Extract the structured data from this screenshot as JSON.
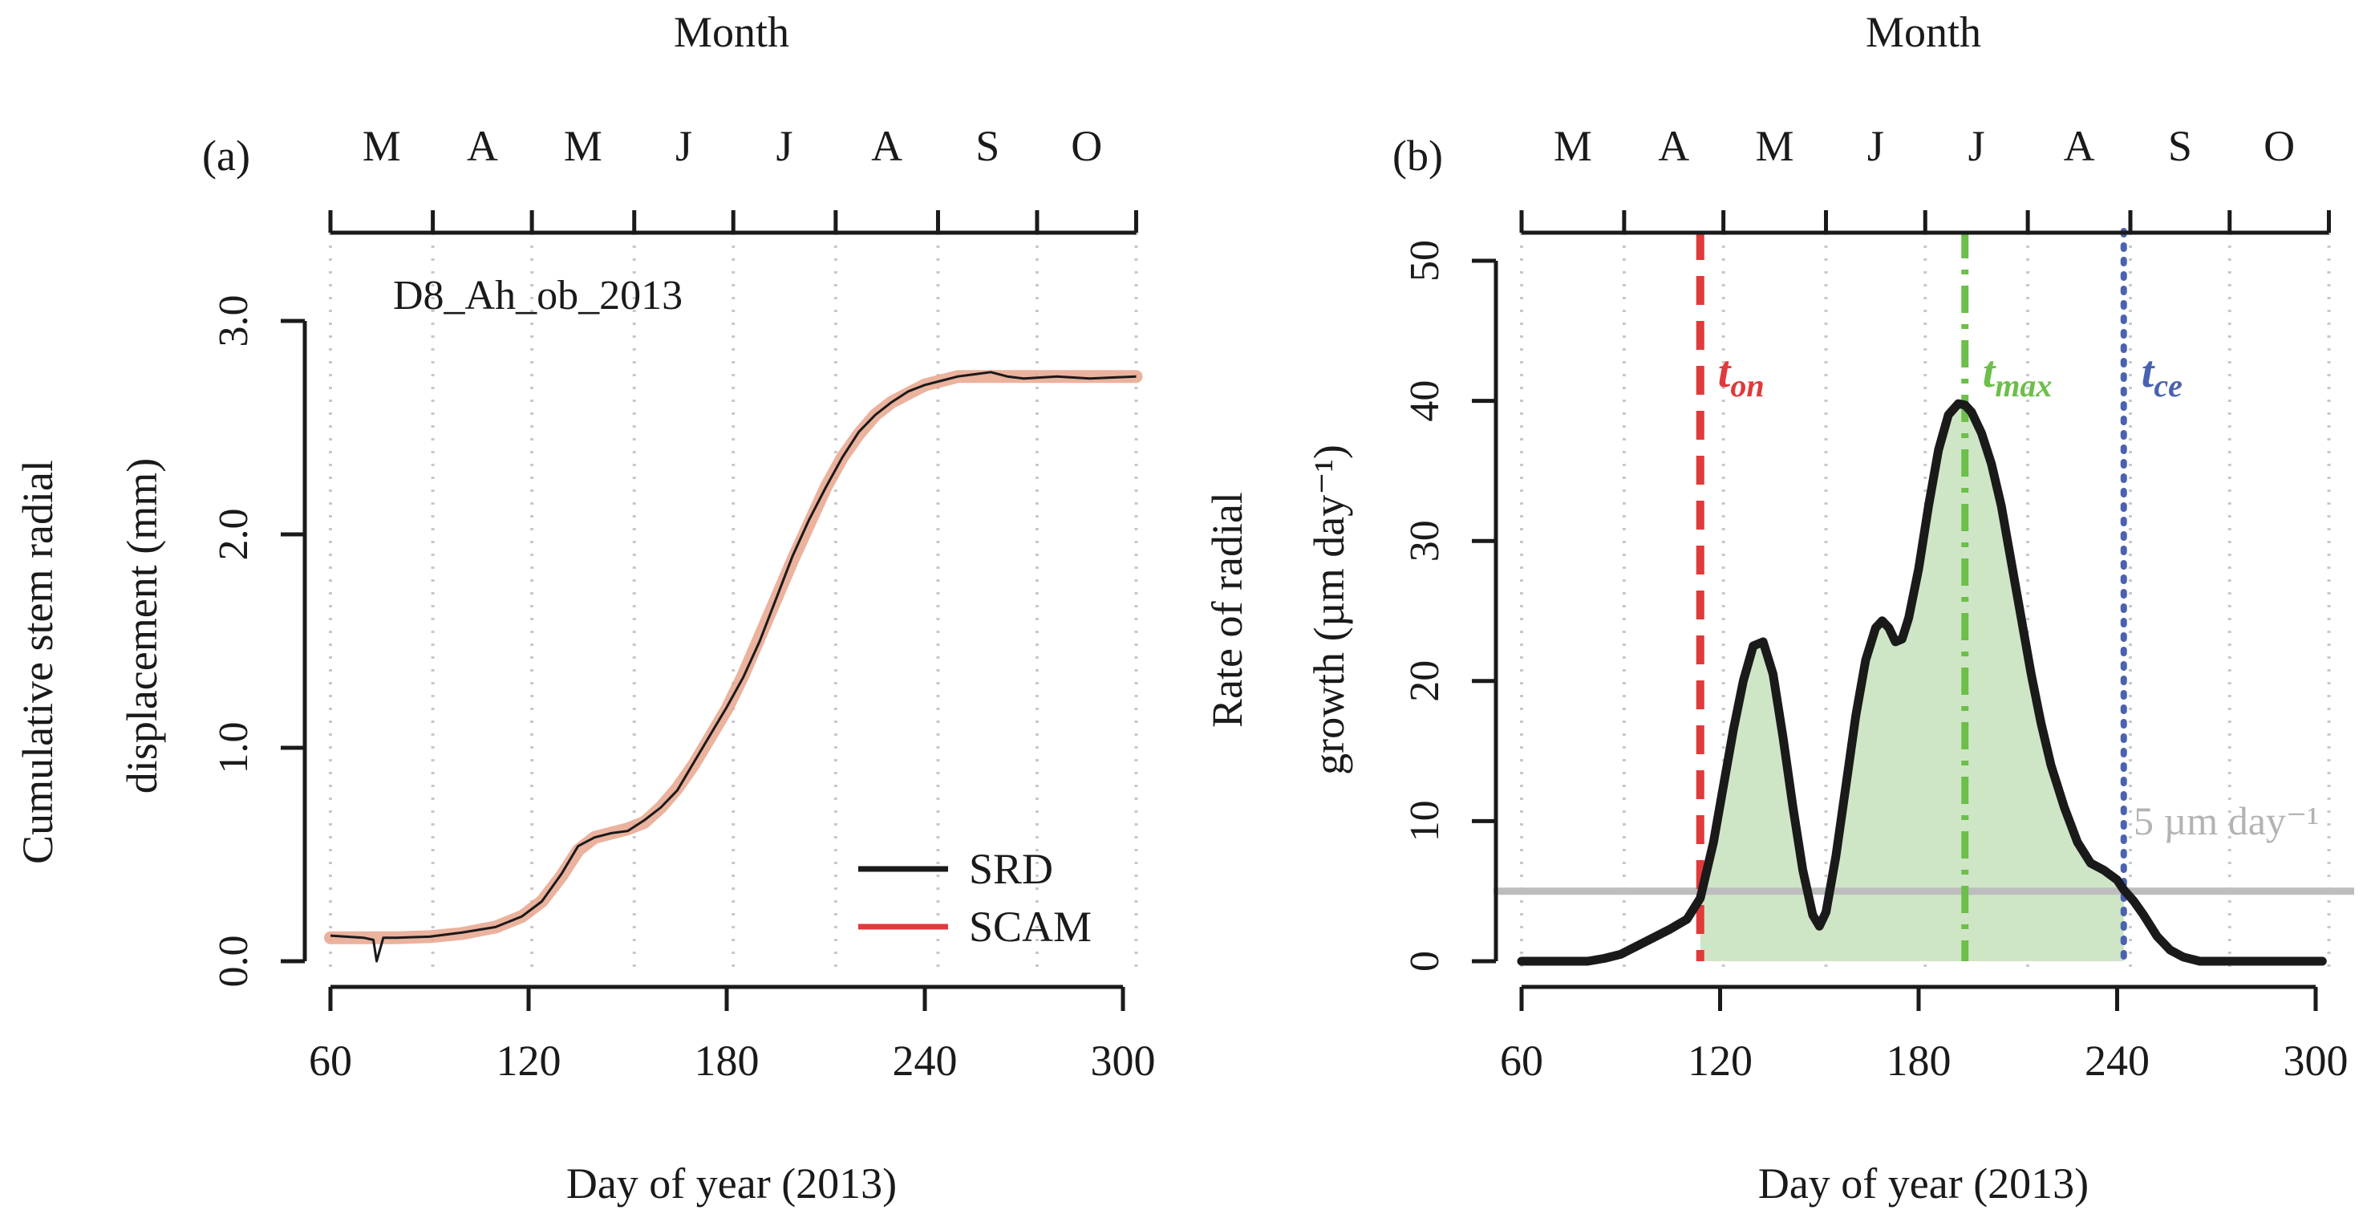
{
  "colors": {
    "axis": "#1a1a1a",
    "grid": "#c8c8c8",
    "srd": "#1a1a1a",
    "scam": "#e8a48c",
    "onset": "#e03a3a",
    "max": "#6cbf4a",
    "cessation": "#4a62b0",
    "fill": "#cfe6c6",
    "threshold": "#bdbdbd",
    "threshold_text": "#b3b3b3"
  },
  "chart_data": [
    {
      "panel": "a",
      "type": "line",
      "panel_label": "(a)",
      "top_title": "Month",
      "xlabel": "Day of year (2013)",
      "ylabel_line1": "Cumulative stem radial",
      "ylabel_line2": "displacement (mm)",
      "annotation": "D8_Ah_ob_2013",
      "xlim": [
        60,
        304
      ],
      "ylim": [
        0,
        3.0
      ],
      "xticks": [
        60,
        120,
        180,
        240,
        300
      ],
      "xtick_labels": [
        "60",
        "120",
        "180",
        "240",
        "300"
      ],
      "yticks": [
        0,
        1,
        2,
        3
      ],
      "ytick_labels": [
        "0.0",
        "1.0",
        "2.0",
        "3.0"
      ],
      "month_letters": [
        "M",
        "A",
        "M",
        "J",
        "J",
        "A",
        "S",
        "O"
      ],
      "month_boundaries": [
        60,
        91,
        121,
        152,
        182,
        213,
        244,
        274,
        304
      ],
      "legend": [
        "SRD",
        "SCAM"
      ],
      "series": [
        {
          "name": "SCAM",
          "x": [
            60,
            70,
            80,
            90,
            100,
            110,
            118,
            124,
            130,
            135,
            140,
            145,
            150,
            155,
            160,
            165,
            170,
            175,
            180,
            185,
            190,
            195,
            200,
            205,
            210,
            215,
            220,
            225,
            230,
            235,
            240,
            245,
            250,
            255,
            260,
            270,
            280,
            290,
            304
          ],
          "y": [
            0.11,
            0.11,
            0.11,
            0.115,
            0.13,
            0.16,
            0.21,
            0.28,
            0.4,
            0.52,
            0.58,
            0.6,
            0.62,
            0.65,
            0.72,
            0.81,
            0.92,
            1.05,
            1.18,
            1.34,
            1.52,
            1.7,
            1.88,
            2.05,
            2.22,
            2.36,
            2.47,
            2.56,
            2.62,
            2.66,
            2.7,
            2.72,
            2.74,
            2.74,
            2.74,
            2.74,
            2.74,
            2.74,
            2.74
          ]
        },
        {
          "name": "SRD",
          "x": [
            60,
            70,
            73,
            74,
            76,
            80,
            90,
            100,
            110,
            118,
            124,
            130,
            135,
            140,
            145,
            150,
            155,
            160,
            165,
            170,
            175,
            180,
            185,
            190,
            195,
            200,
            205,
            210,
            215,
            220,
            225,
            230,
            235,
            240,
            245,
            250,
            255,
            260,
            265,
            270,
            280,
            290,
            304
          ],
          "y": [
            0.12,
            0.11,
            0.1,
            0.0,
            0.11,
            0.11,
            0.115,
            0.135,
            0.16,
            0.21,
            0.28,
            0.41,
            0.54,
            0.58,
            0.6,
            0.61,
            0.66,
            0.72,
            0.8,
            0.93,
            1.06,
            1.19,
            1.33,
            1.5,
            1.7,
            1.9,
            2.07,
            2.22,
            2.36,
            2.48,
            2.56,
            2.62,
            2.67,
            2.7,
            2.72,
            2.74,
            2.75,
            2.76,
            2.74,
            2.73,
            2.74,
            2.73,
            2.74
          ]
        }
      ]
    },
    {
      "panel": "b",
      "type": "area",
      "panel_label": "(b)",
      "top_title": "Month",
      "xlabel": "Day of year (2013)",
      "ylabel_line1": "Rate of radial",
      "ylabel_line2": "growth (µm day⁻¹)",
      "xlim": [
        60,
        302
      ],
      "ylim": [
        0,
        50
      ],
      "xticks": [
        60,
        120,
        180,
        240,
        300
      ],
      "xtick_labels": [
        "60",
        "120",
        "180",
        "240",
        "300"
      ],
      "yticks": [
        0,
        10,
        20,
        30,
        40,
        50
      ],
      "ytick_labels": [
        "0",
        "10",
        "20",
        "30",
        "40",
        "50"
      ],
      "month_letters": [
        "M",
        "A",
        "M",
        "J",
        "J",
        "A",
        "S",
        "O"
      ],
      "month_boundaries": [
        60,
        91,
        121,
        152,
        182,
        213,
        244,
        274,
        304
      ],
      "threshold_value": 5,
      "threshold_label": "5 µm day⁻¹",
      "markers": [
        {
          "name": "t_on",
          "label": "t",
          "sub": "on",
          "x": 114,
          "style": "dashed",
          "color_key": "onset"
        },
        {
          "name": "t_max",
          "label": "t",
          "sub": "max",
          "x": 194,
          "style": "dashdot",
          "color_key": "max"
        },
        {
          "name": "t_ce",
          "label": "t",
          "sub": "ce",
          "x": 242,
          "style": "dotted",
          "color_key": "cessation"
        }
      ],
      "series": [
        {
          "name": "Growth rate",
          "x": [
            60,
            70,
            80,
            85,
            90,
            95,
            100,
            105,
            110,
            114,
            118,
            121,
            124,
            127,
            130,
            133,
            136,
            139,
            142,
            145,
            148,
            150,
            152,
            155,
            158,
            161,
            164,
            167,
            169,
            171,
            173,
            175,
            177,
            180,
            183,
            186,
            189,
            192,
            194,
            196,
            199,
            202,
            205,
            208,
            211,
            214,
            217,
            220,
            224,
            228,
            232,
            236,
            240,
            242,
            245,
            248,
            252,
            256,
            260,
            265,
            270,
            280,
            290,
            302
          ],
          "y": [
            0,
            0,
            0,
            0.2,
            0.5,
            1.1,
            1.7,
            2.3,
            3.0,
            4.5,
            8.5,
            12.5,
            16.5,
            20.0,
            22.5,
            22.8,
            20.5,
            16.0,
            11.0,
            6.5,
            3.3,
            2.5,
            3.5,
            7.5,
            12.5,
            17.5,
            21.5,
            23.8,
            24.3,
            23.8,
            22.8,
            23.0,
            24.5,
            28.0,
            32.5,
            36.5,
            39.0,
            39.8,
            39.7,
            39.2,
            37.7,
            35.5,
            32.5,
            28.5,
            24.5,
            20.5,
            17.0,
            14.0,
            11.0,
            8.5,
            7.0,
            6.5,
            5.8,
            5.1,
            4.3,
            3.3,
            1.8,
            0.8,
            0.3,
            0,
            0,
            0,
            0,
            0
          ]
        }
      ]
    }
  ]
}
